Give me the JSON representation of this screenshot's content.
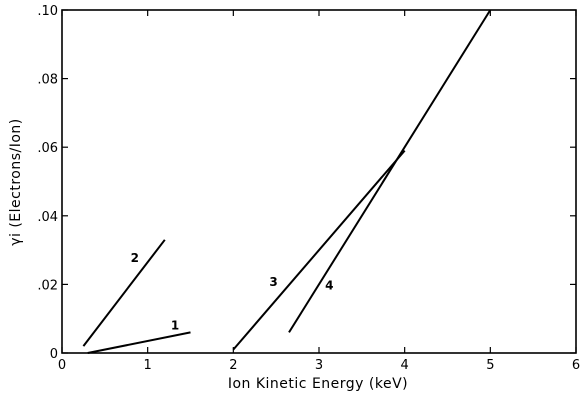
{
  "chart_data": {
    "type": "line",
    "title": "",
    "xlabel": "Ion Kinetic Energy (keV)",
    "ylabel": "γi (Electrons/Ion)",
    "xlim": [
      0,
      6
    ],
    "ylim": [
      0,
      0.1
    ],
    "xticks": [
      0,
      1,
      2,
      3,
      4,
      5,
      6
    ],
    "xtick_labels": [
      "0",
      "1",
      "2",
      "3",
      "4",
      "5",
      "6"
    ],
    "yticks": [
      0,
      0.02,
      0.04,
      0.06,
      0.08,
      0.1
    ],
    "ytick_labels": [
      "0",
      ".02",
      ".04",
      ".06",
      ".08",
      ".10"
    ],
    "grid": false,
    "legend": "none",
    "series": [
      {
        "name": "1",
        "x": [
          0.3,
          1.5
        ],
        "y": [
          0.0,
          0.006
        ],
        "label_at": [
          1.32,
          0.0068
        ]
      },
      {
        "name": "2",
        "x": [
          0.25,
          1.2
        ],
        "y": [
          0.002,
          0.033
        ],
        "label_at": [
          0.85,
          0.0265
        ]
      },
      {
        "name": "3",
        "x": [
          2.0,
          4.0
        ],
        "y": [
          0.001,
          0.059
        ],
        "label_at": [
          2.47,
          0.0195
        ]
      },
      {
        "name": "4",
        "x": [
          2.65,
          5.0
        ],
        "y": [
          0.006,
          0.1
        ],
        "label_at": [
          3.12,
          0.0185
        ]
      }
    ]
  }
}
